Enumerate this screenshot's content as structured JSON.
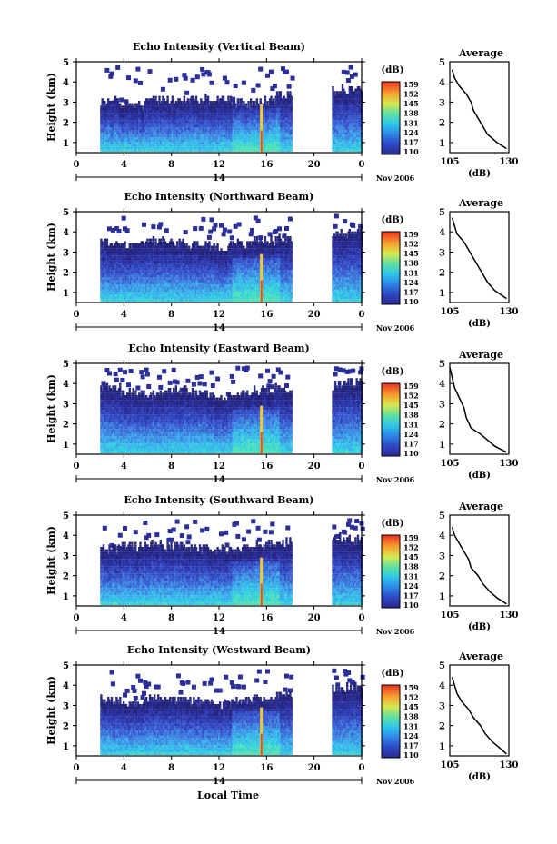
{
  "chart_data": [
    {
      "type": "heatmap",
      "title": "Echo Intensity (Vertical Beam)",
      "ylabel": "Height (km)",
      "ylim": [
        0.5,
        5
      ],
      "y_ticks": [
        "1",
        "2",
        "3",
        "4",
        "5"
      ],
      "xlim": [
        0,
        24
      ],
      "x_ticks": [
        "0",
        "4",
        "8",
        "12",
        "16",
        "20",
        "0"
      ],
      "date_ticks": [
        "14"
      ],
      "date_note": "Nov 2006",
      "colorbar": {
        "unit": "(dB)",
        "labels": [
          "159",
          "152",
          "145",
          "138",
          "131",
          "124",
          "117",
          "110"
        ]
      },
      "echo_top_km": [
        3.0,
        3.0,
        2.8,
        3.0,
        3.0,
        3.1,
        3.0,
        2.9,
        3.0,
        3.3,
        3.4,
        3.5,
        3.6
      ],
      "average_profile": {
        "title": "Average",
        "xlabel": "(dB)",
        "xlim": [
          105,
          130
        ],
        "x_ticks": [
          "105",
          "130"
        ],
        "y_ticks": [
          "1",
          "2",
          "3",
          "4",
          "5"
        ],
        "height_km": [
          4.6,
          4.2,
          3.8,
          3.4,
          3.0,
          2.6,
          2.2,
          1.8,
          1.4,
          1.0,
          0.7
        ],
        "db": [
          106,
          107,
          109,
          112,
          114,
          115,
          117,
          119,
          121,
          125,
          129
        ]
      }
    },
    {
      "type": "heatmap",
      "title": "Echo Intensity (Northward Beam)",
      "ylabel": "Height (km)",
      "ylim": [
        0.5,
        5
      ],
      "y_ticks": [
        "1",
        "2",
        "3",
        "4",
        "5"
      ],
      "xlim": [
        0,
        24
      ],
      "x_ticks": [
        "0",
        "4",
        "8",
        "12",
        "16",
        "20",
        "0"
      ],
      "date_ticks": [
        "14"
      ],
      "date_note": "Nov 2006",
      "colorbar": {
        "unit": "(dB)",
        "labels": [
          "159",
          "152",
          "145",
          "138",
          "131",
          "124",
          "117",
          "110"
        ]
      },
      "echo_top_km": [
        3.2,
        3.4,
        3.3,
        3.5,
        3.4,
        3.3,
        3.2,
        3.4,
        3.5,
        3.6,
        3.7,
        3.8,
        3.9
      ],
      "average_profile": {
        "title": "Average",
        "xlabel": "(dB)",
        "xlim": [
          105,
          130
        ],
        "x_ticks": [
          "105",
          "130"
        ],
        "y_ticks": [
          "1",
          "2",
          "3",
          "4",
          "5"
        ],
        "height_km": [
          4.7,
          4.3,
          3.9,
          3.5,
          3.1,
          2.7,
          2.3,
          1.9,
          1.5,
          1.1,
          0.7
        ],
        "db": [
          106,
          107,
          108,
          111,
          113,
          115,
          117,
          119,
          121,
          124,
          129
        ]
      }
    },
    {
      "type": "heatmap",
      "title": "Echo Intensity (Eastward Beam)",
      "ylabel": "Height (km)",
      "ylim": [
        0.5,
        5
      ],
      "y_ticks": [
        "1",
        "2",
        "3",
        "4",
        "5"
      ],
      "xlim": [
        0,
        24
      ],
      "x_ticks": [
        "0",
        "4",
        "8",
        "12",
        "16",
        "20",
        "0"
      ],
      "date_ticks": [
        "14"
      ],
      "date_note": "Nov 2006",
      "colorbar": {
        "unit": "(dB)",
        "labels": [
          "159",
          "152",
          "145",
          "138",
          "131",
          "124",
          "117",
          "110"
        ]
      },
      "echo_top_km": [
        3.6,
        3.8,
        3.5,
        3.4,
        3.6,
        3.5,
        3.3,
        3.4,
        3.6,
        3.7,
        3.8,
        3.9,
        4.0
      ],
      "average_profile": {
        "title": "Average",
        "xlabel": "(dB)",
        "xlim": [
          105,
          130
        ],
        "x_ticks": [
          "105",
          "130"
        ],
        "y_ticks": [
          "1",
          "2",
          "3",
          "4",
          "5"
        ],
        "height_km": [
          4.8,
          4.3,
          3.8,
          3.3,
          2.8,
          2.3,
          1.8,
          1.5,
          1.2,
          0.9,
          0.6
        ],
        "db": [
          105,
          106,
          107,
          109,
          111,
          112,
          114,
          118,
          121,
          124,
          129
        ]
      }
    },
    {
      "type": "heatmap",
      "title": "Echo Intensity (Southward Beam)",
      "ylabel": "Height (km)",
      "ylim": [
        0.5,
        5
      ],
      "y_ticks": [
        "1",
        "2",
        "3",
        "4",
        "5"
      ],
      "xlim": [
        0,
        24
      ],
      "x_ticks": [
        "0",
        "4",
        "8",
        "12",
        "16",
        "20",
        "0"
      ],
      "date_ticks": [
        "14"
      ],
      "date_note": "Nov 2006",
      "colorbar": {
        "unit": "(dB)",
        "labels": [
          "159",
          "152",
          "145",
          "138",
          "131",
          "124",
          "117",
          "110"
        ]
      },
      "echo_top_km": [
        3.1,
        3.3,
        3.4,
        3.5,
        3.4,
        3.3,
        3.2,
        3.3,
        3.5,
        3.6,
        3.7,
        3.8,
        3.7
      ],
      "average_profile": {
        "title": "Average",
        "xlabel": "(dB)",
        "xlim": [
          105,
          130
        ],
        "x_ticks": [
          "105",
          "130"
        ],
        "y_ticks": [
          "1",
          "2",
          "3",
          "4",
          "5"
        ],
        "height_km": [
          4.4,
          4.0,
          3.6,
          3.2,
          2.8,
          2.4,
          2.0,
          1.6,
          1.2,
          0.9,
          0.6
        ],
        "db": [
          106,
          107,
          109,
          111,
          113,
          114,
          117,
          119,
          122,
          125,
          129
        ]
      }
    },
    {
      "type": "heatmap",
      "title": "Echo Intensity (Westward Beam)",
      "ylabel": "Height (km)",
      "ylim": [
        0.5,
        5
      ],
      "y_ticks": [
        "1",
        "2",
        "3",
        "4",
        "5"
      ],
      "xlim": [
        0,
        24
      ],
      "x_ticks": [
        "0",
        "4",
        "8",
        "12",
        "16",
        "20",
        "0"
      ],
      "date_ticks": [
        "14"
      ],
      "date_note": "Nov 2006",
      "xlabel": "Local Time",
      "colorbar": {
        "unit": "(dB)",
        "labels": [
          "159",
          "152",
          "145",
          "138",
          "131",
          "124",
          "117",
          "110"
        ]
      },
      "echo_top_km": [
        3.0,
        3.2,
        3.1,
        3.3,
        3.2,
        3.1,
        3.0,
        3.2,
        3.3,
        3.4,
        3.6,
        3.7,
        3.8
      ],
      "average_profile": {
        "title": "Average",
        "xlabel": "(dB)",
        "xlim": [
          105,
          130
        ],
        "x_ticks": [
          "105",
          "130"
        ],
        "y_ticks": [
          "1",
          "2",
          "3",
          "4",
          "5"
        ],
        "height_km": [
          4.4,
          4.0,
          3.6,
          3.2,
          2.8,
          2.4,
          2.0,
          1.6,
          1.2,
          0.9,
          0.6
        ],
        "db": [
          106,
          107,
          108,
          110,
          113,
          115,
          118,
          120,
          123,
          126,
          129
        ]
      }
    }
  ]
}
